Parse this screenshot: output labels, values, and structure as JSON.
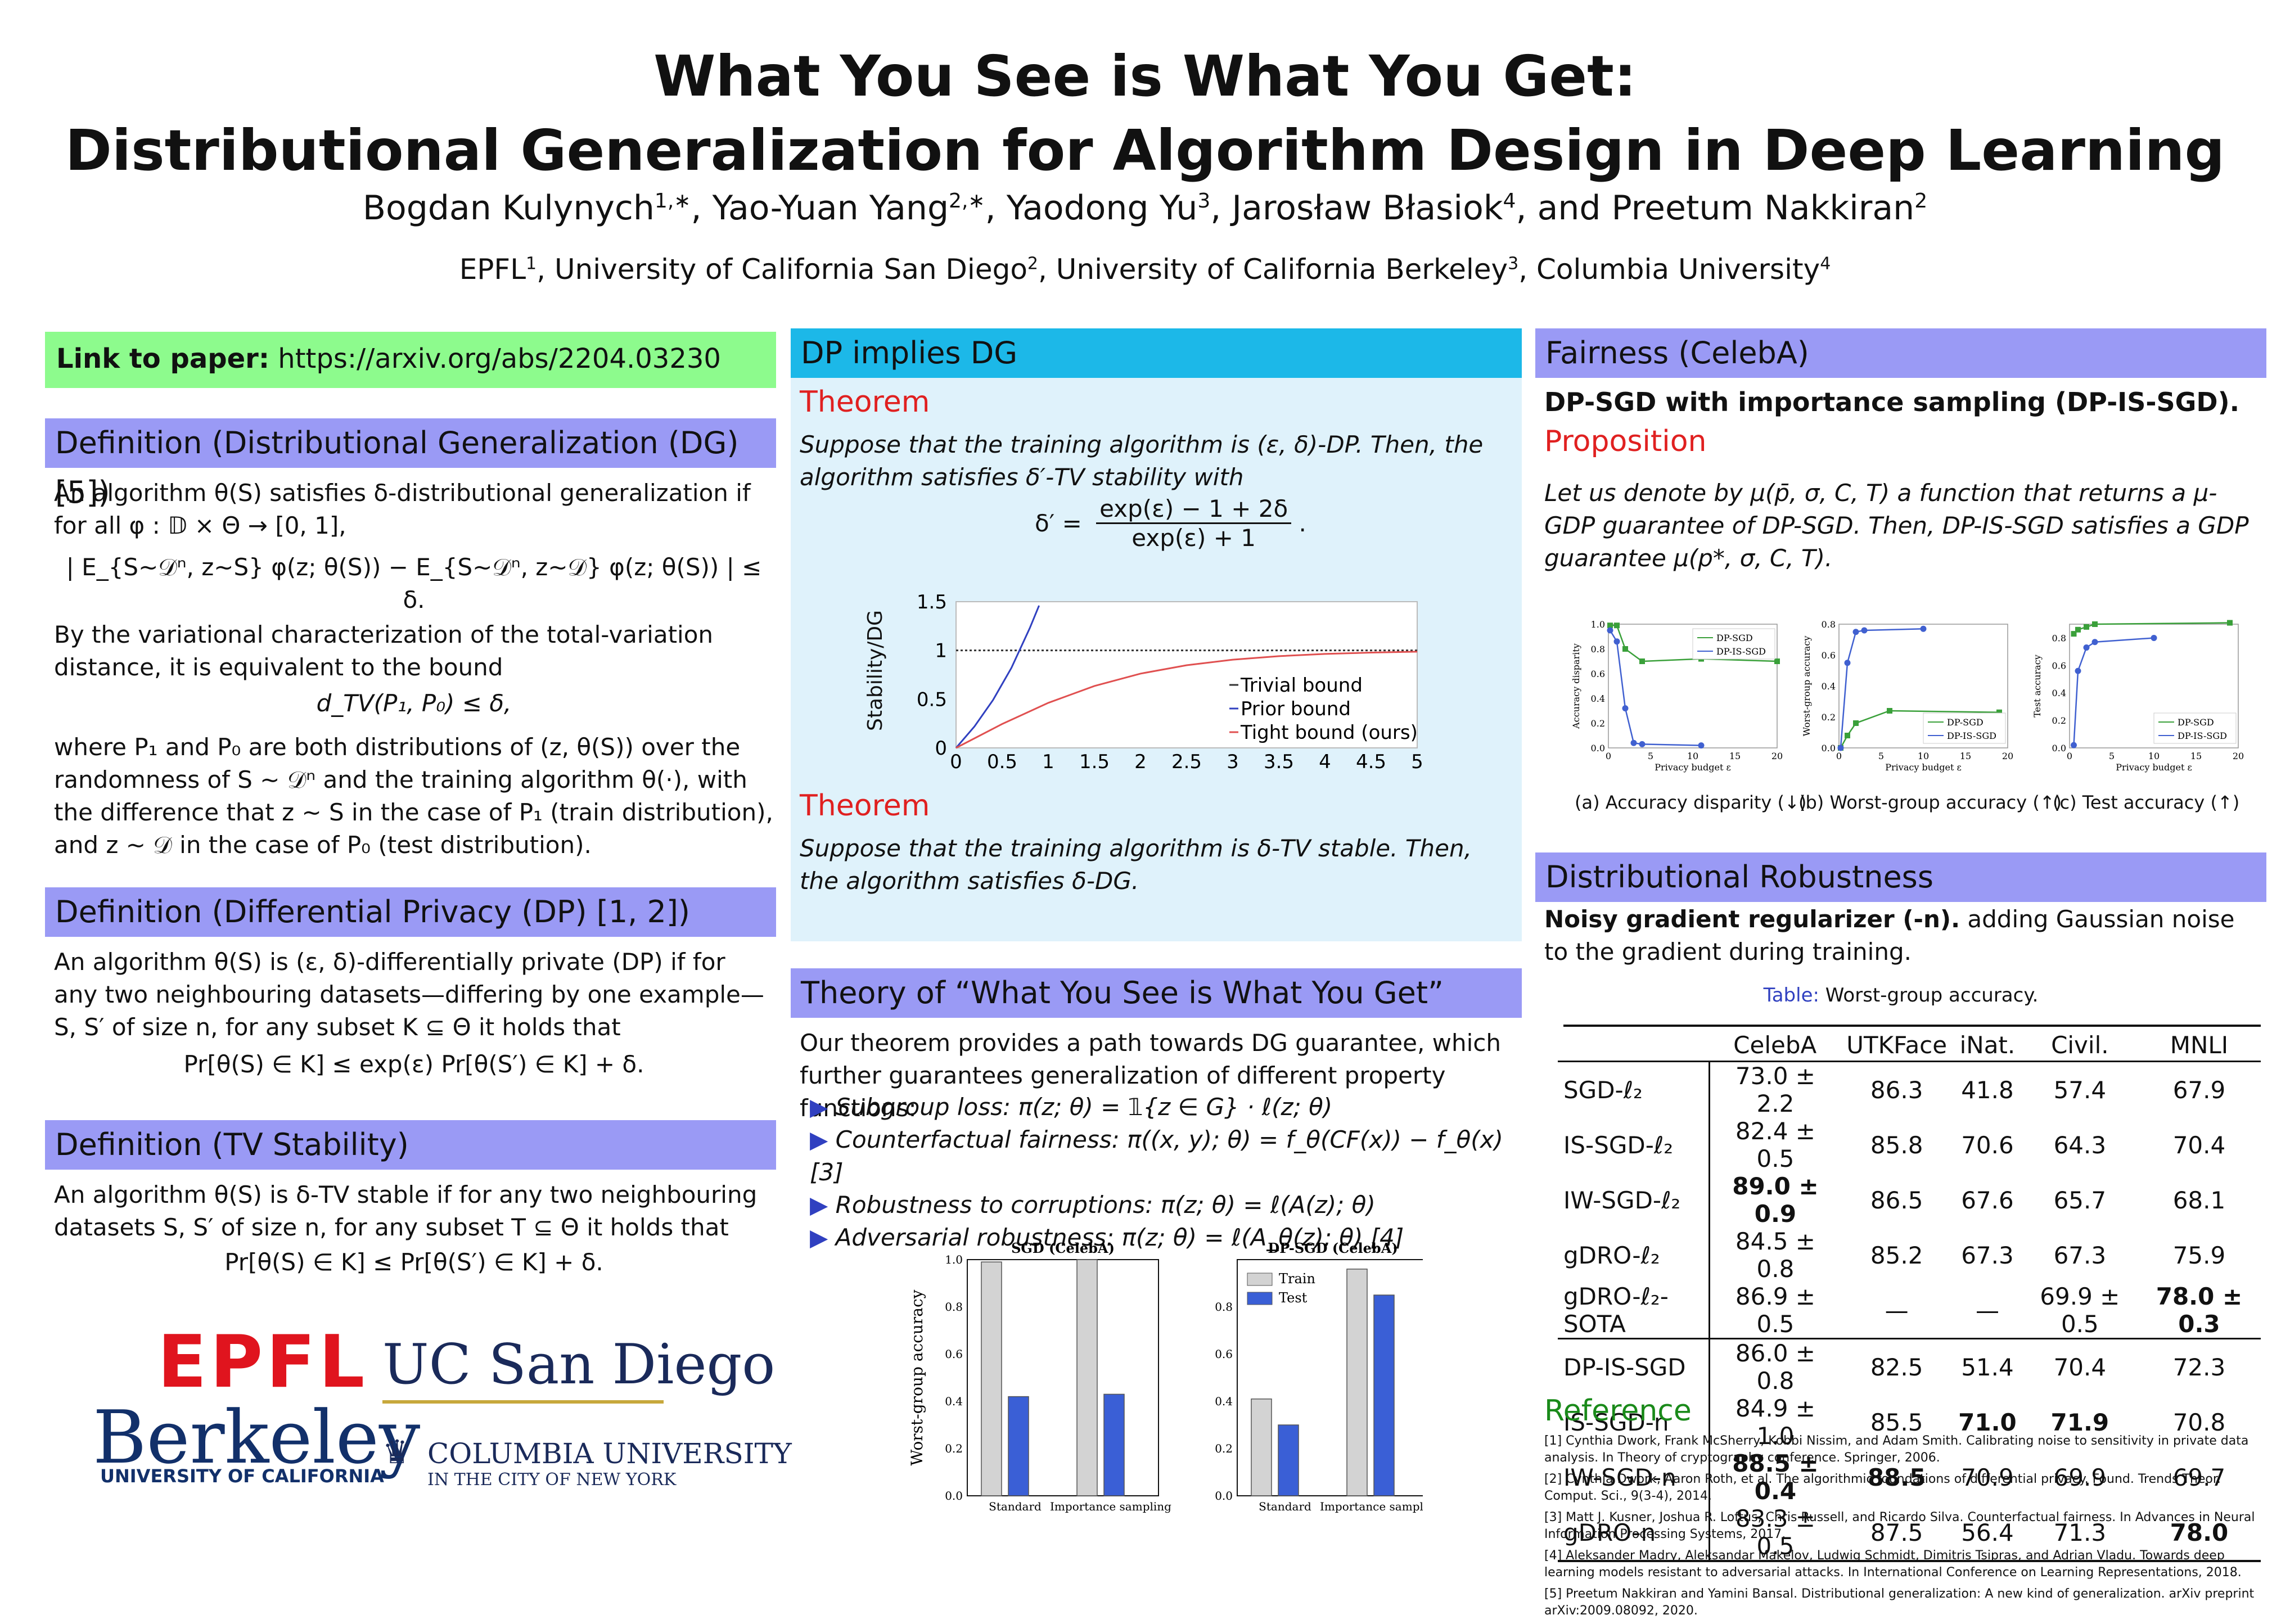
{
  "title_line1": "What You See is What You Get:",
  "title_line2": "Distributional Generalization for Algorithm Design in Deep Learning",
  "authors": [
    {
      "name": "Bogdan Kulynych",
      "sup": "1,∗"
    },
    {
      "name": "Yao-Yuan Yang",
      "sup": "2,∗"
    },
    {
      "name": "Yaodong Yu",
      "sup": "3"
    },
    {
      "name": "Jarosław Błasiok",
      "sup": "4"
    },
    {
      "name": "Preetum Nakkiran",
      "sup": "2"
    }
  ],
  "affiliations": [
    {
      "name": "EPFL",
      "sup": "1"
    },
    {
      "name": "University of California San Diego",
      "sup": "2"
    },
    {
      "name": "University of California Berkeley",
      "sup": "3"
    },
    {
      "name": "Columbia University",
      "sup": "4"
    }
  ],
  "link": {
    "label": "Link to paper:",
    "url": "https://arxiv.org/abs/2204.03230"
  },
  "def_dg": {
    "header": "Definition (Distributional Generalization (DG) [5])",
    "p1": "An algorithm θ(S) satisfies δ-distributional generalization if for all φ : 𝔻 × Θ → [0, 1],",
    "formula": "| E_{S∼𝒟ⁿ, z∼S} φ(z; θ(S)) − E_{S∼𝒟ⁿ, z∼𝒟} φ(z; θ(S)) | ≤ δ.",
    "p2": "By the variational characterization of the total-variation distance, it is equivalent to the bound",
    "formula2": "d_TV(P₁, P₀) ≤ δ,",
    "p3": "where P₁ and P₀ are both distributions of (z, θ(S)) over the randomness of S ∼ 𝒟ⁿ and the training algorithm θ(·), with the difference that z ∼ S in the case of P₁ (train distribution), and z ∼ 𝒟 in the case of P₀ (test distribution)."
  },
  "def_dp": {
    "header": "Definition (Differential Privacy (DP) [1, 2])",
    "p1": "An algorithm θ(S) is (ε, δ)-differentially private (DP) if for any two neighbouring datasets—differing by one example—S, S′ of size n, for any subset K ⊆ Θ it holds that",
    "formula": "Pr[θ(S) ∈ K] ≤ exp(ε) Pr[θ(S′) ∈ K] + δ."
  },
  "def_tv": {
    "header": "Definition (TV Stability)",
    "p1": "An algorithm θ(S) is δ-TV stable if for any two neighbouring datasets S, S′ of size n, for any subset T ⊆ Θ it holds that",
    "formula": "Pr[θ(S) ∈ K] ≤ Pr[θ(S′) ∈ K] + δ."
  },
  "logos": {
    "epfl": "EPFL",
    "ucsd": "UC San Diego",
    "berkeley": "Berkeley",
    "berkeley_sub": "UNIVERSITY OF CALIFORNIA",
    "columbia": "COLUMBIA UNIVERSITY",
    "columbia_sub": "IN THE CITY OF NEW YORK"
  },
  "dp_dg": {
    "header": "DP implies DG",
    "thm1_label": "Theorem",
    "thm1": "Suppose that the training algorithm is (ε, δ)-DP. Then, the algorithm satisfies δ′-TV stability with",
    "thm1_formula_lhs": "δ′ =",
    "thm1_formula_num": "exp(ε) − 1 + 2δ",
    "thm1_formula_den": "exp(ε) + 1",
    "thm2_label": "Theorem",
    "thm2": "Suppose that the training algorithm is δ-TV stable. Then, the algorithm satisfies δ-DG."
  },
  "theory": {
    "header": "Theory of “What You See is What You Get”",
    "intro": "Our theorem provides a path towards DG guarantee, which further guarantees generalization of different property functions:",
    "items": [
      "Subgroup loss: π(z; θ) = 𝟙{z ∈ G} · ℓ(z; θ)",
      "Counterfactual fairness: π((x, y); θ) = f_θ(CF(x)) − f_θ(x) [3]",
      "Robustness to corruptions: π(z; θ) = ℓ(A(z); θ)",
      "Adversarial robustness: π(z; θ) = ℓ(A_θ(z); θ) [4]"
    ]
  },
  "fairness": {
    "header": "Fairness (CelebA)",
    "sub": "DP-SGD with importance sampling (DP-IS-SGD).",
    "prop_label": "Proposition",
    "prop": "Let us denote by μ(p̄, σ, C, T) a function that returns a μ-GDP guarantee of DP-SGD. Then, DP-IS-SGD satisfies a GDP guarantee μ(p*, σ, C, T).",
    "cap_a": "(a) Accuracy disparity (↓)",
    "cap_b": "(b) Worst-group accuracy (↑)",
    "cap_c": "(c) Test accuracy (↑)"
  },
  "robust": {
    "header": "Distributional Robustness",
    "sub_bold": "Noisy gradient regularizer (-n).",
    "sub_rest": " adding Gaussian noise to the gradient during training.",
    "table_label": "Table:",
    "table_caption": "Worst-group accuracy.",
    "columns": [
      "",
      "CelebA",
      "UTKFace",
      "iNat.",
      "Civil.",
      "MNLI"
    ],
    "rows": [
      [
        "SGD-ℓ₂",
        "73.0 ± 2.2",
        "86.3",
        "41.8",
        "57.4",
        "67.9"
      ],
      [
        "IS-SGD-ℓ₂",
        "82.4 ± 0.5",
        "85.8",
        "70.6",
        "64.3",
        "70.4"
      ],
      [
        "IW-SGD-ℓ₂",
        "89.0 ± 0.9",
        "86.5",
        "67.6",
        "65.7",
        "68.1"
      ],
      [
        "gDRO-ℓ₂",
        "84.5 ± 0.8",
        "85.2",
        "67.3",
        "67.3",
        "75.9"
      ],
      [
        "gDRO-ℓ₂-SOTA",
        "86.9 ± 0.5",
        "—",
        "—",
        "69.9 ± 0.5",
        "78.0 ± 0.3"
      ],
      [
        "DP-IS-SGD",
        "86.0 ± 0.8",
        "82.5",
        "51.4",
        "70.4",
        "72.3"
      ],
      [
        "IS-SGD-n",
        "84.9 ± 1.0",
        "85.5",
        "71.0",
        "71.9",
        "70.8"
      ],
      [
        "IW-SGD-n",
        "88.5 ± 0.4",
        "88.5",
        "70.9",
        "69.9",
        "69.7"
      ],
      [
        "gDRO-n",
        "83.3 ± 0.5",
        "87.5",
        "56.4",
        "71.3",
        "78.0"
      ]
    ]
  },
  "references": {
    "header": "Reference",
    "items": [
      "[1]  Cynthia Dwork, Frank McSherry, Kobbi Nissim, and Adam Smith. Calibrating noise to sensitivity in private data analysis. In Theory of cryptography conference. Springer, 2006.",
      "[2]  Cynthia Dwork, Aaron Roth, et al. The algorithmic foundations of differential privacy. Found. Trends Theor. Comput. Sci., 9(3-4), 2014.",
      "[3]  Matt J. Kusner, Joshua R. Loftus, Chris Russell, and Ricardo Silva. Counterfactual fairness. In Advances in Neural Information Processing Systems, 2017.",
      "[4]  Aleksander Madry, Aleksandar Makelov, Ludwig Schmidt, Dimitris Tsipras, and Adrian Vladu. Towards deep learning models resistant to adversarial attacks. In International Conference on Learning Representations, 2018.",
      "[5]  Preetum Nakkiran and Yamini Bansal. Distributional generalization: A new kind of generalization. arXiv preprint arXiv:2009.08092, 2020."
    ]
  },
  "chart_data": [
    {
      "type": "line",
      "ylabel": "Stability/DG",
      "xlim": [
        0,
        5
      ],
      "ylim": [
        0,
        1.5
      ],
      "xticks": [
        "0",
        "0.5",
        "1",
        "1.5",
        "2",
        "2.5",
        "3",
        "3.5",
        "4",
        "4.5",
        "5"
      ],
      "yticks": [
        "0",
        "0.5",
        "1",
        "1.5"
      ],
      "legend": "bottom-right",
      "series": [
        {
          "name": "Trivial bound",
          "color": "#333333",
          "style": "dotted",
          "x": [
            0,
            5
          ],
          "y": [
            1,
            1
          ]
        },
        {
          "name": "Prior bound",
          "color": "#3040c0",
          "x": [
            0,
            0.2,
            0.4,
            0.6,
            0.8,
            0.9
          ],
          "y": [
            0,
            0.22,
            0.49,
            0.82,
            1.23,
            1.46
          ]
        },
        {
          "name": "Tight bound (ours)",
          "color": "#e05050",
          "x": [
            0,
            0.5,
            1,
            1.5,
            2,
            2.5,
            3,
            3.5,
            4,
            4.5,
            5
          ],
          "y": [
            0,
            0.245,
            0.462,
            0.635,
            0.762,
            0.848,
            0.905,
            0.941,
            0.964,
            0.978,
            0.987
          ]
        }
      ]
    },
    {
      "type": "bar",
      "title": "SGD (CelebA)",
      "ylabel": "Worst-group accuracy",
      "categories": [
        "Standard",
        "Importance sampling"
      ],
      "ylim": [
        0,
        1
      ],
      "series": [
        {
          "name": "Train",
          "color": "#d3d3d3",
          "values": [
            0.99,
            1.0
          ]
        },
        {
          "name": "Test",
          "color": "#3a5fd6",
          "values": [
            0.42,
            0.43
          ]
        }
      ]
    },
    {
      "type": "bar",
      "title": "DP-SGD (CelebA)",
      "categories": [
        "Standard",
        "Importance sampling"
      ],
      "ylim": [
        0,
        1
      ],
      "series": [
        {
          "name": "Train",
          "color": "#d3d3d3",
          "values": [
            0.41,
            0.96
          ]
        },
        {
          "name": "Test",
          "color": "#3a5fd6",
          "values": [
            0.3,
            0.85
          ]
        }
      ]
    },
    {
      "type": "line",
      "ylabel": "Accuracy disparity",
      "xlabel": "Privacy budget ε",
      "xlim": [
        0,
        20
      ],
      "ylim": [
        0,
        1
      ],
      "legend": "top-right",
      "series": [
        {
          "name": "DP-SGD",
          "color": "#3aa03a",
          "x": [
            0.2,
            1,
            2,
            4,
            11,
            20
          ],
          "y": [
            0.99,
            0.99,
            0.8,
            0.7,
            0.72,
            0.7
          ]
        },
        {
          "name": "DP-IS-SGD",
          "color": "#4060d0",
          "x": [
            0.2,
            1,
            2,
            3,
            4,
            11
          ],
          "y": [
            0.95,
            0.86,
            0.32,
            0.04,
            0.03,
            0.02
          ]
        }
      ]
    },
    {
      "type": "line",
      "ylabel": "Worst-group accuracy",
      "xlabel": "Privacy budget ε",
      "xlim": [
        0,
        20
      ],
      "ylim": [
        0,
        0.8
      ],
      "legend": "bottom-right",
      "series": [
        {
          "name": "DP-SGD",
          "color": "#3aa03a",
          "x": [
            0.2,
            1,
            2,
            6,
            19
          ],
          "y": [
            0,
            0.08,
            0.16,
            0.24,
            0.23
          ]
        },
        {
          "name": "DP-IS-SGD",
          "color": "#4060d0",
          "x": [
            0.2,
            1,
            2,
            3,
            10
          ],
          "y": [
            0,
            0.55,
            0.75,
            0.76,
            0.77
          ]
        }
      ]
    },
    {
      "type": "line",
      "ylabel": "Test accuracy",
      "xlabel": "Privacy budget ε",
      "xlim": [
        0,
        20
      ],
      "ylim": [
        0,
        0.9
      ],
      "legend": "bottom-right",
      "series": [
        {
          "name": "DP-SGD",
          "color": "#3aa03a",
          "x": [
            0.5,
            1,
            2,
            3,
            19
          ],
          "y": [
            0.83,
            0.86,
            0.88,
            0.9,
            0.91
          ]
        },
        {
          "name": "DP-IS-SGD",
          "color": "#4060d0",
          "x": [
            0.5,
            1,
            2,
            3,
            10
          ],
          "y": [
            0.02,
            0.56,
            0.73,
            0.77,
            0.8
          ]
        }
      ]
    }
  ]
}
